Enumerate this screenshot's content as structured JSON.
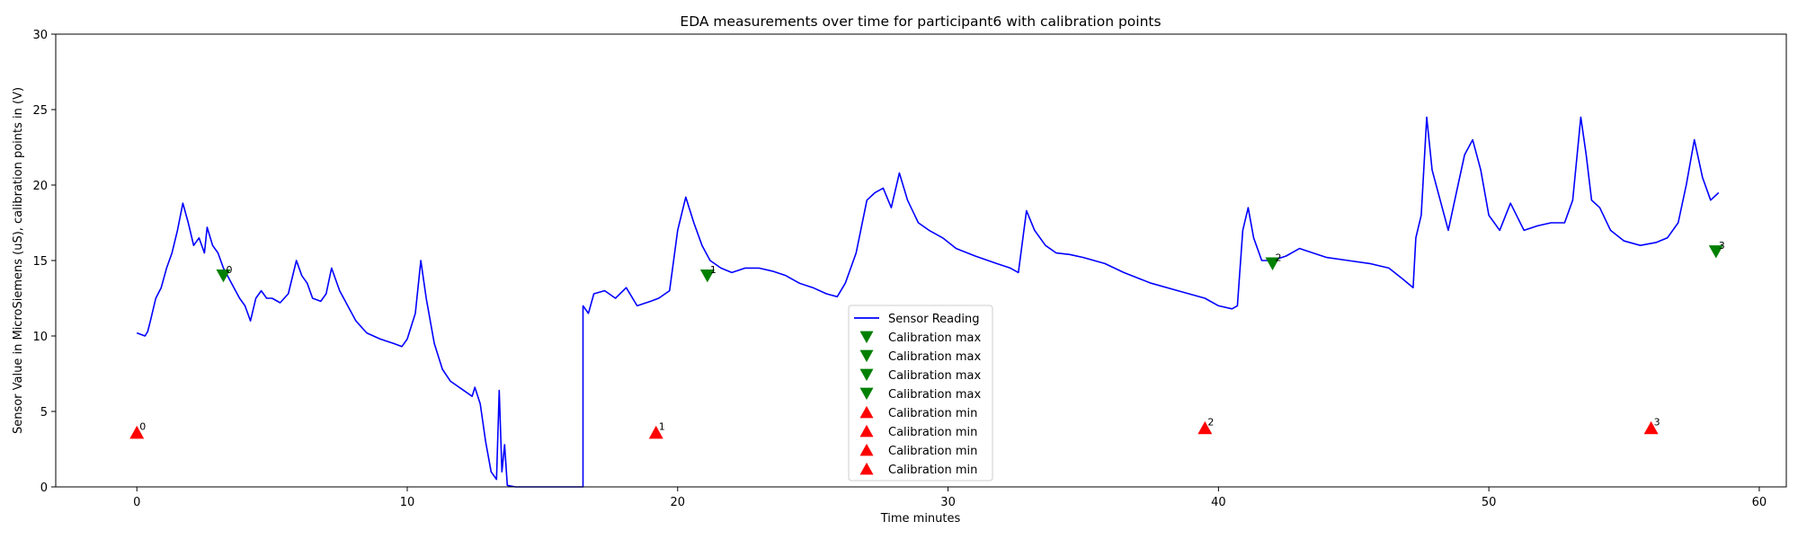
{
  "chart_data": {
    "type": "line",
    "title": "EDA measurements over time for participant6 with calibration points",
    "xlabel": "Time minutes",
    "ylabel": "Sensor Value in MicroSiemens (uS), calibration points in (V)",
    "xlim": [
      -3,
      61
    ],
    "ylim": [
      0,
      30
    ],
    "xticks": [
      0,
      10,
      20,
      30,
      40,
      50,
      60
    ],
    "yticks": [
      0,
      5,
      10,
      15,
      20,
      25,
      30
    ],
    "grid": false,
    "legend_position": "lower-center",
    "series": [
      {
        "name": "Sensor Reading",
        "color": "#0000ff",
        "marker": "line",
        "points": [
          [
            0.0,
            10.2
          ],
          [
            0.3,
            10.0
          ],
          [
            0.4,
            10.3
          ],
          [
            0.5,
            11.0
          ],
          [
            0.7,
            12.5
          ],
          [
            0.9,
            13.2
          ],
          [
            1.1,
            14.5
          ],
          [
            1.3,
            15.5
          ],
          [
            1.5,
            17.0
          ],
          [
            1.7,
            18.8
          ],
          [
            1.9,
            17.5
          ],
          [
            2.1,
            16.0
          ],
          [
            2.3,
            16.5
          ],
          [
            2.5,
            15.5
          ],
          [
            2.6,
            17.2
          ],
          [
            2.8,
            16.0
          ],
          [
            3.0,
            15.5
          ],
          [
            3.2,
            14.5
          ],
          [
            3.5,
            13.5
          ],
          [
            3.8,
            12.5
          ],
          [
            4.0,
            12.0
          ],
          [
            4.2,
            11.0
          ],
          [
            4.4,
            12.5
          ],
          [
            4.6,
            13.0
          ],
          [
            4.8,
            12.5
          ],
          [
            5.0,
            12.5
          ],
          [
            5.3,
            12.2
          ],
          [
            5.6,
            12.8
          ],
          [
            5.9,
            15.0
          ],
          [
            6.1,
            14.0
          ],
          [
            6.3,
            13.5
          ],
          [
            6.5,
            12.5
          ],
          [
            6.8,
            12.3
          ],
          [
            7.0,
            12.8
          ],
          [
            7.2,
            14.5
          ],
          [
            7.5,
            13.0
          ],
          [
            7.8,
            12.0
          ],
          [
            8.1,
            11.0
          ],
          [
            8.5,
            10.2
          ],
          [
            9.0,
            9.8
          ],
          [
            9.5,
            9.5
          ],
          [
            9.8,
            9.3
          ],
          [
            10.0,
            9.8
          ],
          [
            10.3,
            11.5
          ],
          [
            10.5,
            15.0
          ],
          [
            10.7,
            12.5
          ],
          [
            11.0,
            9.5
          ],
          [
            11.3,
            7.8
          ],
          [
            11.6,
            7.0
          ],
          [
            12.0,
            6.5
          ],
          [
            12.4,
            6.0
          ],
          [
            12.5,
            6.6
          ],
          [
            12.7,
            5.5
          ],
          [
            12.9,
            3.0
          ],
          [
            13.1,
            1.0
          ],
          [
            13.3,
            0.5
          ],
          [
            13.4,
            6.4
          ],
          [
            13.5,
            1.0
          ],
          [
            13.6,
            2.8
          ],
          [
            13.7,
            0.1
          ],
          [
            14.0,
            0.0
          ],
          [
            15.5,
            0.0
          ],
          [
            16.5,
            0.0
          ],
          [
            16.5,
            12.0
          ],
          [
            16.7,
            11.5
          ],
          [
            16.9,
            12.8
          ],
          [
            17.3,
            13.0
          ],
          [
            17.7,
            12.5
          ],
          [
            18.1,
            13.2
          ],
          [
            18.5,
            12.0
          ],
          [
            19.0,
            12.3
          ],
          [
            19.3,
            12.5
          ],
          [
            19.7,
            13.0
          ],
          [
            20.0,
            17.0
          ],
          [
            20.3,
            19.2
          ],
          [
            20.6,
            17.5
          ],
          [
            20.9,
            16.0
          ],
          [
            21.2,
            15.0
          ],
          [
            21.6,
            14.5
          ],
          [
            22.0,
            14.2
          ],
          [
            22.5,
            14.5
          ],
          [
            23.0,
            14.5
          ],
          [
            23.5,
            14.3
          ],
          [
            24.0,
            14.0
          ],
          [
            24.5,
            13.5
          ],
          [
            25.0,
            13.2
          ],
          [
            25.5,
            12.8
          ],
          [
            25.9,
            12.6
          ],
          [
            26.2,
            13.5
          ],
          [
            26.6,
            15.5
          ],
          [
            27.0,
            19.0
          ],
          [
            27.3,
            19.5
          ],
          [
            27.6,
            19.8
          ],
          [
            27.9,
            18.5
          ],
          [
            28.2,
            20.8
          ],
          [
            28.5,
            19.0
          ],
          [
            28.9,
            17.5
          ],
          [
            29.3,
            17.0
          ],
          [
            29.8,
            16.5
          ],
          [
            30.3,
            15.8
          ],
          [
            31.0,
            15.3
          ],
          [
            31.8,
            14.8
          ],
          [
            32.3,
            14.5
          ],
          [
            32.6,
            14.2
          ],
          [
            32.9,
            18.3
          ],
          [
            33.2,
            17.0
          ],
          [
            33.6,
            16.0
          ],
          [
            34.0,
            15.5
          ],
          [
            34.5,
            15.4
          ],
          [
            35.0,
            15.2
          ],
          [
            35.8,
            14.8
          ],
          [
            36.5,
            14.2
          ],
          [
            37.5,
            13.5
          ],
          [
            38.5,
            13.0
          ],
          [
            39.5,
            12.5
          ],
          [
            40.0,
            12.0
          ],
          [
            40.5,
            11.8
          ],
          [
            40.7,
            12.0
          ],
          [
            40.9,
            17.0
          ],
          [
            41.1,
            18.5
          ],
          [
            41.3,
            16.5
          ],
          [
            41.6,
            15.0
          ],
          [
            42.0,
            15.0
          ],
          [
            42.5,
            15.3
          ],
          [
            43.0,
            15.8
          ],
          [
            43.5,
            15.5
          ],
          [
            44.0,
            15.2
          ],
          [
            44.8,
            15.0
          ],
          [
            45.6,
            14.8
          ],
          [
            46.3,
            14.5
          ],
          [
            46.8,
            13.8
          ],
          [
            47.2,
            13.2
          ],
          [
            47.3,
            16.5
          ],
          [
            47.5,
            18.0
          ],
          [
            47.7,
            24.5
          ],
          [
            47.9,
            21.0
          ],
          [
            48.2,
            19.0
          ],
          [
            48.5,
            17.0
          ],
          [
            48.8,
            19.5
          ],
          [
            49.1,
            22.0
          ],
          [
            49.4,
            23.0
          ],
          [
            49.7,
            21.0
          ],
          [
            50.0,
            18.0
          ],
          [
            50.4,
            17.0
          ],
          [
            50.8,
            18.8
          ],
          [
            51.3,
            17.0
          ],
          [
            51.8,
            17.3
          ],
          [
            52.3,
            17.5
          ],
          [
            52.8,
            17.5
          ],
          [
            53.1,
            19.0
          ],
          [
            53.4,
            24.5
          ],
          [
            53.6,
            22.0
          ],
          [
            53.8,
            19.0
          ],
          [
            54.1,
            18.5
          ],
          [
            54.5,
            17.0
          ],
          [
            55.0,
            16.3
          ],
          [
            55.6,
            16.0
          ],
          [
            56.2,
            16.2
          ],
          [
            56.6,
            16.5
          ],
          [
            57.0,
            17.5
          ],
          [
            57.3,
            20.0
          ],
          [
            57.6,
            23.0
          ],
          [
            57.9,
            20.5
          ],
          [
            58.2,
            19.0
          ],
          [
            58.5,
            19.5
          ]
        ]
      },
      {
        "name": "Calibration max",
        "color": "#008000",
        "marker": "triangle-down",
        "points": [
          [
            3.2,
            14.0
          ]
        ]
      },
      {
        "name": "Calibration max",
        "color": "#008000",
        "marker": "triangle-down",
        "points": [
          [
            21.1,
            14.0
          ]
        ]
      },
      {
        "name": "Calibration max",
        "color": "#008000",
        "marker": "triangle-down",
        "points": [
          [
            42.0,
            14.8
          ]
        ]
      },
      {
        "name": "Calibration max",
        "color": "#008000",
        "marker": "triangle-down",
        "points": [
          [
            58.4,
            15.6
          ]
        ]
      },
      {
        "name": "Calibration min",
        "color": "#ff0000",
        "marker": "triangle-up",
        "points": [
          [
            0.0,
            3.6
          ]
        ]
      },
      {
        "name": "Calibration min",
        "color": "#ff0000",
        "marker": "triangle-up",
        "points": [
          [
            19.2,
            3.6
          ]
        ]
      },
      {
        "name": "Calibration min",
        "color": "#ff0000",
        "marker": "triangle-up",
        "points": [
          [
            39.5,
            3.9
          ]
        ]
      },
      {
        "name": "Calibration min",
        "color": "#ff0000",
        "marker": "triangle-up",
        "points": [
          [
            56.0,
            3.9
          ]
        ]
      }
    ],
    "annotations": [
      {
        "text": "0",
        "x": 3.2,
        "y": 14.0
      },
      {
        "text": "1",
        "x": 21.1,
        "y": 14.0
      },
      {
        "text": "2",
        "x": 42.0,
        "y": 14.8
      },
      {
        "text": "3",
        "x": 58.4,
        "y": 15.6
      },
      {
        "text": "0",
        "x": 0.0,
        "y": 3.6
      },
      {
        "text": "1",
        "x": 19.2,
        "y": 3.6
      },
      {
        "text": "2",
        "x": 39.5,
        "y": 3.9
      },
      {
        "text": "3",
        "x": 56.0,
        "y": 3.9
      }
    ]
  }
}
